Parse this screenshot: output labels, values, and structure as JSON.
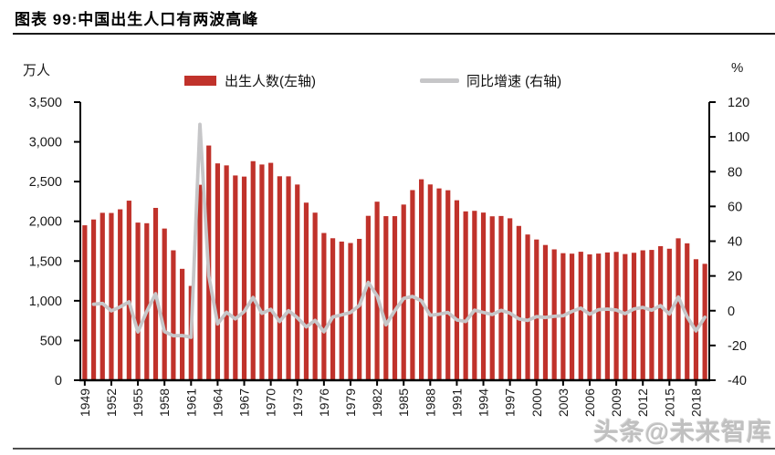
{
  "header": {
    "title": "图表 99:中国出生人口有两波高峰"
  },
  "watermark": "头条@未来智库",
  "chart_data": {
    "type": "bar+line",
    "title": "中国出生人口有两波高峰",
    "grid": false,
    "legend_position": "top",
    "x": [
      1949,
      1950,
      1951,
      1952,
      1953,
      1954,
      1955,
      1956,
      1957,
      1958,
      1959,
      1960,
      1961,
      1962,
      1963,
      1964,
      1965,
      1966,
      1967,
      1968,
      1969,
      1970,
      1971,
      1972,
      1973,
      1974,
      1975,
      1976,
      1977,
      1978,
      1979,
      1980,
      1981,
      1982,
      1983,
      1984,
      1985,
      1986,
      1987,
      1988,
      1989,
      1990,
      1991,
      1992,
      1993,
      1994,
      1995,
      1996,
      1997,
      1998,
      1999,
      2000,
      2001,
      2002,
      2003,
      2004,
      2005,
      2006,
      2007,
      2008,
      2009,
      2010,
      2011,
      2012,
      2013,
      2014,
      2015,
      2016,
      2017,
      2018,
      2019
    ],
    "series": [
      {
        "name": "出生人数(左轴)",
        "type": "bar",
        "axis": "left",
        "color": "#c0322b",
        "values": [
          1950,
          2023,
          2107,
          2105,
          2151,
          2260,
          1984,
          1976,
          2169,
          1909,
          1635,
          1402,
          1187,
          2460,
          2954,
          2729,
          2704,
          2577,
          2563,
          2757,
          2715,
          2736,
          2567,
          2566,
          2463,
          2235,
          2109,
          1853,
          1787,
          1745,
          1727,
          1779,
          2069,
          2247,
          2065,
          2065,
          2211,
          2393,
          2529,
          2464,
          2414,
          2391,
          2265,
          2125,
          2132,
          2110,
          2063,
          2067,
          2038,
          1942,
          1834,
          1771,
          1702,
          1647,
          1599,
          1593,
          1617,
          1584,
          1594,
          1608,
          1615,
          1588,
          1604,
          1635,
          1640,
          1687,
          1655,
          1786,
          1723,
          1523,
          1465
        ]
      },
      {
        "name": "同比增速 (右轴)",
        "type": "line",
        "axis": "right",
        "color": "#c6c6c8",
        "values": [
          null,
          3.7,
          4.2,
          -0.1,
          2.2,
          5.1,
          -12.2,
          -0.4,
          9.8,
          -12.0,
          -14.4,
          -14.3,
          -15.3,
          107.2,
          20.1,
          -7.6,
          -0.9,
          -4.7,
          -0.5,
          7.6,
          -1.5,
          0.8,
          -6.2,
          0.0,
          -4.0,
          -9.3,
          -5.6,
          -12.1,
          -3.6,
          -2.4,
          -1.0,
          3.0,
          16.3,
          8.6,
          -8.1,
          0.0,
          7.1,
          8.2,
          5.7,
          -2.6,
          -2.0,
          -1.0,
          -5.3,
          -6.2,
          0.3,
          -1.0,
          -2.2,
          0.2,
          -1.4,
          -4.7,
          -5.6,
          -3.4,
          -3.9,
          -3.2,
          -2.9,
          -0.4,
          1.5,
          -2.0,
          0.6,
          0.9,
          0.4,
          -1.7,
          1.0,
          1.9,
          0.3,
          2.9,
          -1.9,
          7.9,
          -3.5,
          -11.6,
          -3.8
        ]
      }
    ],
    "left_axis": {
      "label": "万人",
      "min": 0,
      "max": 3500,
      "ticks": [
        0,
        500,
        1000,
        1500,
        2000,
        2500,
        3000,
        3500
      ]
    },
    "right_axis": {
      "label": "%",
      "min": -40,
      "max": 120,
      "ticks": [
        -40,
        -20,
        0,
        20,
        40,
        60,
        80,
        100,
        120
      ]
    },
    "x_ticks": [
      1949,
      1952,
      1955,
      1958,
      1961,
      1964,
      1967,
      1970,
      1973,
      1976,
      1979,
      1982,
      1985,
      1988,
      1991,
      1994,
      1997,
      2000,
      2003,
      2006,
      2009,
      2012,
      2015,
      2018
    ]
  }
}
